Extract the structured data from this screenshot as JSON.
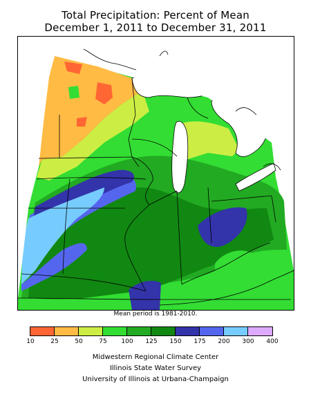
{
  "title": {
    "line1": "Total Precipitation: Percent of Mean",
    "line2": "December 1, 2011 to December 31, 2011"
  },
  "note": "Mean period is 1981-2010.",
  "legend": {
    "bins": [
      {
        "from": "10",
        "to": "25",
        "color": "#ff6633"
      },
      {
        "from": "25",
        "to": "50",
        "color": "#ffbb44"
      },
      {
        "from": "50",
        "to": "75",
        "color": "#ccee44"
      },
      {
        "from": "75",
        "to": "100",
        "color": "#33dd33"
      },
      {
        "from": "100",
        "to": "125",
        "color": "#22aa22"
      },
      {
        "from": "125",
        "to": "150",
        "color": "#118811"
      },
      {
        "from": "150",
        "to": "175",
        "color": "#3333aa"
      },
      {
        "from": "175",
        "to": "200",
        "color": "#5566ee"
      },
      {
        "from": "200",
        "to": "300",
        "color": "#77ccff"
      },
      {
        "from": "300",
        "to": "400",
        "color": "#ddaaff"
      }
    ],
    "ticks": [
      "10",
      "25",
      "50",
      "75",
      "100",
      "125",
      "150",
      "175",
      "200",
      "300",
      "400"
    ]
  },
  "credits": {
    "line1": "Midwestern Regional Climate Center",
    "line2": "Illinois State Water Survey",
    "line3": "University of Illinois at Urbana-Champaign"
  },
  "colors": {
    "lake": "#ffffff",
    "boundary": "#000000"
  }
}
